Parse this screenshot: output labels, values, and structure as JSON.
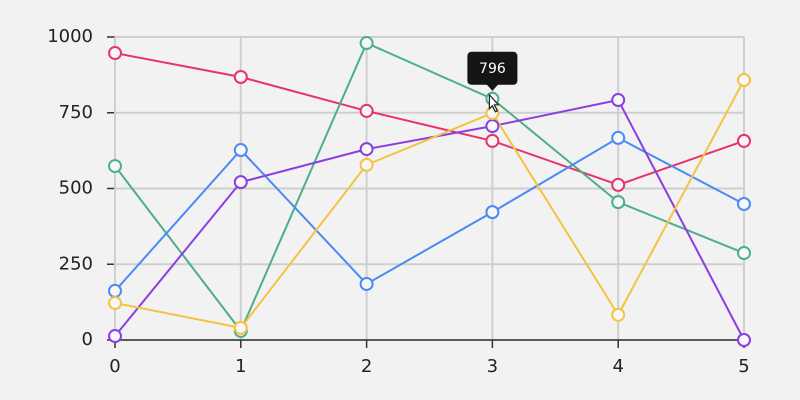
{
  "chart_data": {
    "type": "line",
    "x": [
      0,
      1,
      2,
      3,
      4,
      5
    ],
    "xlim": [
      0,
      5
    ],
    "xticks": [
      0,
      1,
      2,
      3,
      4,
      5
    ],
    "ylim": [
      0,
      1000
    ],
    "yticks": [
      0,
      250,
      500,
      750,
      1000
    ],
    "grid": true,
    "series": [
      {
        "color": "#e8336b",
        "values": [
          947,
          868,
          756,
          657,
          512,
          657
        ]
      },
      {
        "color": "#4caf8a",
        "values": [
          574,
          30,
          980,
          796,
          455,
          287
        ]
      },
      {
        "color": "#4a8af4",
        "values": [
          162,
          627,
          185,
          422,
          667,
          449
        ]
      },
      {
        "color": "#8b3fe0",
        "values": [
          13,
          521,
          630,
          706,
          792,
          0
        ]
      },
      {
        "color": "#f5c343",
        "values": [
          122,
          40,
          578,
          749,
          83,
          858
        ]
      }
    ],
    "tooltip_point": {
      "series": 1,
      "index": 3
    }
  }
}
